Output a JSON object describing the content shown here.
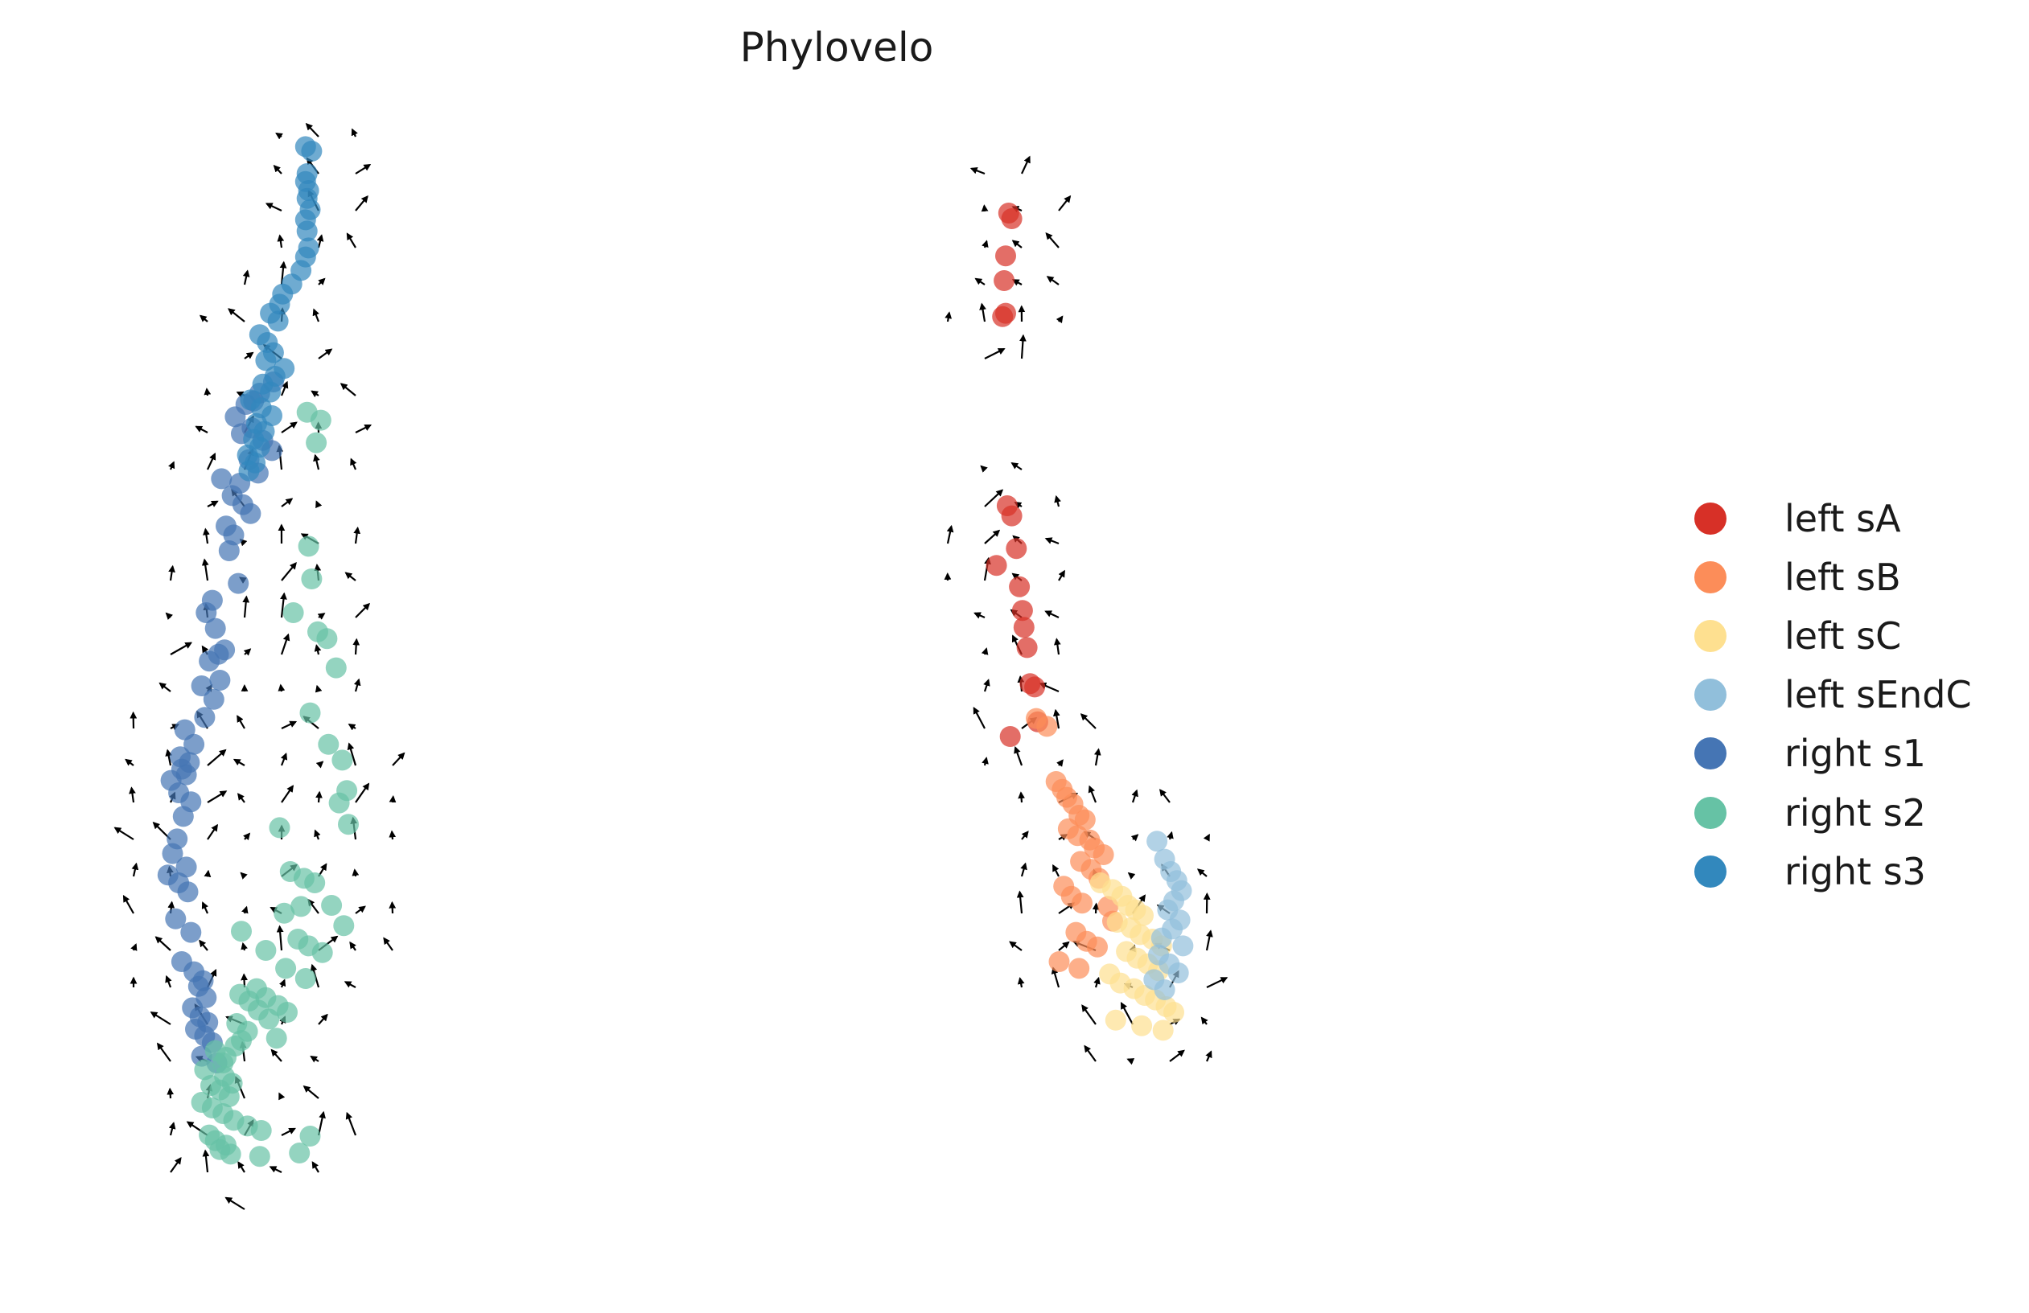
{
  "chart_data": {
    "type": "scatter",
    "title": "Phylovelo",
    "xlabel": "",
    "ylabel": "",
    "axes_visible": false,
    "grid": false,
    "overlay": "velocity arrows (quiver)",
    "legend": {
      "placement": "right",
      "entries": [
        {
          "label": "left sA",
          "color": "#d73027"
        },
        {
          "label": "left sB",
          "color": "#fc8d59"
        },
        {
          "label": "left sC",
          "color": "#fee090"
        },
        {
          "label": "left sEndC",
          "color": "#91bfdb"
        },
        {
          "label": "right s1",
          "color": "#4575b4"
        },
        {
          "label": "right s2",
          "color": "#66c2a5"
        },
        {
          "label": "right s3",
          "color": "#3288bd"
        }
      ]
    },
    "xlim": [
      0,
      100
    ],
    "ylim": [
      0,
      100
    ],
    "series": [
      {
        "name": "left sA",
        "color": "#d73027",
        "x": [
          60.2,
          60.4,
          60.0,
          59.9,
          60.0,
          59.8,
          60.1,
          60.4,
          59.4,
          60.7,
          60.9,
          61.1,
          61.2,
          61.4,
          61.6,
          60.3,
          61.9,
          62.1
        ],
        "y": [
          92.5,
          92.0,
          88.7,
          86.5,
          83.6,
          83.3,
          66.5,
          65.6,
          61.2,
          62.7,
          59.3,
          57.2,
          55.7,
          53.9,
          50.7,
          46.0,
          50.4,
          47.3
        ]
      },
      {
        "name": "left sB",
        "color": "#fc8d59",
        "x": [
          62.0,
          62.7,
          63.3,
          63.7,
          64.0,
          64.4,
          64.8,
          65.2,
          64.1,
          64.7,
          65.5,
          65.8,
          66.4,
          64.9,
          65.6,
          66.1,
          63.8,
          64.3,
          65.0,
          66.7,
          67.0,
          64.6,
          65.3,
          66.0,
          63.5,
          64.8
        ],
        "y": [
          47.6,
          46.9,
          42.0,
          41.3,
          40.6,
          40.0,
          39.0,
          38.6,
          37.8,
          37.2,
          36.8,
          36.1,
          35.5,
          34.9,
          34.2,
          33.4,
          32.7,
          31.8,
          31.2,
          30.9,
          29.6,
          28.6,
          27.8,
          27.3,
          26.0,
          25.4
        ]
      },
      {
        "name": "left sC",
        "color": "#fee090",
        "x": [
          66.2,
          67.0,
          67.6,
          68.0,
          68.5,
          69.0,
          67.3,
          68.2,
          68.8,
          69.6,
          70.2,
          67.9,
          68.6,
          69.3,
          70.0,
          66.8,
          67.5,
          68.4,
          69.1,
          69.8,
          70.5,
          71.0,
          67.2,
          68.9,
          70.3
        ],
        "y": [
          33.0,
          32.4,
          31.8,
          31.0,
          30.6,
          30.1,
          29.5,
          29.0,
          28.4,
          28.0,
          27.4,
          26.9,
          26.3,
          25.8,
          25.2,
          24.9,
          24.1,
          23.6,
          23.0,
          22.6,
          22.0,
          21.5,
          20.8,
          20.3,
          19.9
        ]
      },
      {
        "name": "left sEndC",
        "color": "#91bfdb",
        "x": [
          69.9,
          70.4,
          70.8,
          71.2,
          71.5,
          71.0,
          70.6,
          71.4,
          70.9,
          70.2,
          71.6,
          70.0,
          70.7,
          71.3,
          69.7,
          70.4
        ],
        "y": [
          36.7,
          35.1,
          34.0,
          33.2,
          32.3,
          31.4,
          30.6,
          29.7,
          28.9,
          28.1,
          27.4,
          26.6,
          25.8,
          25.0,
          24.4,
          23.5
        ]
      },
      {
        "name": "right s1",
        "color": "#4575b4",
        "x": [
          12.1,
          11.2,
          10.8,
          10.3,
          9.6,
          10.7,
          11.4,
          12.0,
          10.0,
          10.5,
          11.1,
          9.9,
          9.4,
          8.7,
          10.1,
          10.6,
          9.0,
          9.5,
          9.2,
          9.8,
          8.1,
          7.7,
          8.3,
          8.9,
          8.5,
          7.9,
          8.6,
          7.4,
          8.2,
          7.6,
          6.3,
          6.9,
          6.0,
          6.6,
          6.1,
          6.4,
          5.4,
          5.9,
          6.7,
          6.2,
          5.8,
          5.5,
          6.4,
          5.2,
          5.9,
          6.5,
          5.7,
          6.7,
          6.1,
          6.9,
          7.5,
          7.2,
          7.7,
          6.8,
          7.3,
          7.8,
          7.0,
          7.6,
          8.1,
          7.4,
          8.4
        ],
        "y": [
          77.5,
          76.5,
          75.8,
          75.5,
          74.4,
          73.4,
          72.3,
          71.4,
          72.9,
          70.6,
          69.4,
          68.5,
          67.4,
          68.9,
          66.6,
          65.8,
          64.7,
          63.9,
          62.5,
          59.6,
          58.1,
          57.0,
          55.6,
          53.7,
          53.3,
          52.7,
          51.0,
          50.5,
          49.3,
          47.7,
          46.6,
          45.3,
          44.2,
          43.7,
          43.1,
          42.6,
          42.1,
          41.0,
          40.2,
          38.9,
          36.9,
          35.6,
          34.4,
          33.7,
          33.0,
          32.2,
          29.8,
          28.6,
          26.0,
          25.1,
          24.3,
          23.8,
          22.8,
          21.9,
          21.1,
          20.6,
          20.0,
          19.4,
          18.8,
          17.6,
          17.0
        ]
      },
      {
        "name": "right s2",
        "color": "#66c2a5",
        "x": [
          14.3,
          15.2,
          14.9,
          14.4,
          14.6,
          13.4,
          15.0,
          15.6,
          16.2,
          14.5,
          15.7,
          16.6,
          16.9,
          16.4,
          17.0,
          12.5,
          13.2,
          14.1,
          14.8,
          15.9,
          16.7,
          13.7,
          14.4,
          15.3,
          10.0,
          12.8,
          13.9,
          11.6,
          12.9,
          14.2,
          11.0,
          11.6,
          12.4,
          13.0,
          9.9,
          10.5,
          11.1,
          11.8,
          9.7,
          10.4,
          12.3,
          10.0,
          9.6,
          8.3,
          9.0,
          8.8,
          7.6,
          8.9,
          9.4,
          8.0,
          8.6,
          9.2,
          7.4,
          8.1,
          8.8,
          9.5,
          10.4,
          11.3,
          7.9,
          8.3,
          9.0,
          8.6,
          9.3,
          11.2,
          14.5,
          13.8
        ],
        "y": [
          74.8,
          74.1,
          72.1,
          62.9,
          60.0,
          57.0,
          55.3,
          54.7,
          52.1,
          48.1,
          45.3,
          43.9,
          41.2,
          40.1,
          38.2,
          37.9,
          34.0,
          33.4,
          33.0,
          31.0,
          29.2,
          28.0,
          27.4,
          26.8,
          28.7,
          30.3,
          30.9,
          27.0,
          25.4,
          24.5,
          23.6,
          22.8,
          22.1,
          21.5,
          23.1,
          22.5,
          21.7,
          20.9,
          20.5,
          19.8,
          19.2,
          19.0,
          18.5,
          18.1,
          17.5,
          17.0,
          16.4,
          15.8,
          15.2,
          15.0,
          14.6,
          14.0,
          13.5,
          13.0,
          12.5,
          11.9,
          11.4,
          11.0,
          10.6,
          10.1,
          9.7,
          9.3,
          8.9,
          8.7,
          10.5,
          9.0
        ]
      },
      {
        "name": "right s3",
        "color": "#3288bd",
        "x": [
          14.2,
          14.6,
          14.3,
          14.2,
          14.4,
          14.3,
          14.5,
          14.2,
          14.3,
          14.4,
          14.2,
          13.9,
          13.3,
          12.7,
          12.5,
          11.9,
          12.4,
          11.2,
          11.7,
          12.1,
          11.6,
          12.8,
          12.2,
          11.4,
          11.9,
          10.6,
          11.3,
          12.0,
          11.0,
          11.5,
          10.8,
          11.2,
          10.4,
          10.9,
          10.5
        ],
        "y": [
          98.4,
          98.0,
          96.0,
          95.3,
          94.5,
          93.8,
          92.8,
          91.9,
          90.9,
          89.4,
          88.6,
          87.4,
          86.2,
          85.3,
          84.4,
          83.6,
          82.9,
          81.7,
          81.0,
          80.1,
          79.4,
          78.7,
          78.0,
          77.3,
          76.6,
          75.9,
          75.2,
          74.5,
          73.8,
          73.1,
          72.4,
          71.7,
          71.0,
          70.3,
          69.6
        ]
      }
    ]
  }
}
